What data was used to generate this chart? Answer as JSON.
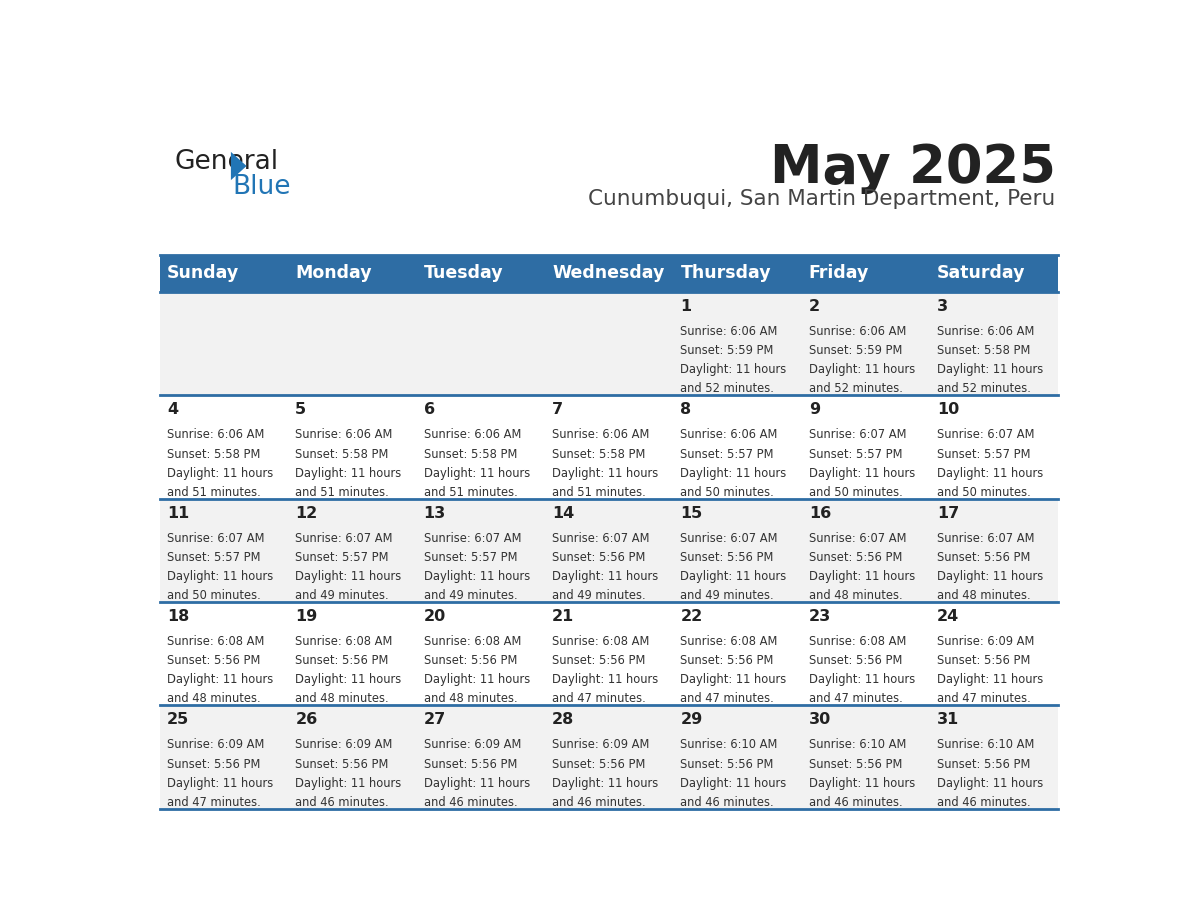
{
  "title": "May 2025",
  "subtitle": "Cunumbuqui, San Martin Department, Peru",
  "days_of_week": [
    "Sunday",
    "Monday",
    "Tuesday",
    "Wednesday",
    "Thursday",
    "Friday",
    "Saturday"
  ],
  "header_bg": "#2E6DA4",
  "header_text": "#FFFFFF",
  "row_bg_odd": "#F2F2F2",
  "row_bg_even": "#FFFFFF",
  "cell_text_color": "#333333",
  "day_num_color": "#222222",
  "border_color": "#2E6DA4",
  "title_color": "#222222",
  "subtitle_color": "#444444",
  "logo_general_color": "#222222",
  "logo_blue_color": "#2175B5",
  "calendar_data": [
    [
      {
        "day": "",
        "sunrise": "",
        "sunset": "",
        "daylight_h": "",
        "daylight_m": ""
      },
      {
        "day": "",
        "sunrise": "",
        "sunset": "",
        "daylight_h": "",
        "daylight_m": ""
      },
      {
        "day": "",
        "sunrise": "",
        "sunset": "",
        "daylight_h": "",
        "daylight_m": ""
      },
      {
        "day": "",
        "sunrise": "",
        "sunset": "",
        "daylight_h": "",
        "daylight_m": ""
      },
      {
        "day": "1",
        "sunrise": "6:06 AM",
        "sunset": "5:59 PM",
        "daylight_h": "11",
        "daylight_m": "52"
      },
      {
        "day": "2",
        "sunrise": "6:06 AM",
        "sunset": "5:59 PM",
        "daylight_h": "11",
        "daylight_m": "52"
      },
      {
        "day": "3",
        "sunrise": "6:06 AM",
        "sunset": "5:58 PM",
        "daylight_h": "11",
        "daylight_m": "52"
      }
    ],
    [
      {
        "day": "4",
        "sunrise": "6:06 AM",
        "sunset": "5:58 PM",
        "daylight_h": "11",
        "daylight_m": "51"
      },
      {
        "day": "5",
        "sunrise": "6:06 AM",
        "sunset": "5:58 PM",
        "daylight_h": "11",
        "daylight_m": "51"
      },
      {
        "day": "6",
        "sunrise": "6:06 AM",
        "sunset": "5:58 PM",
        "daylight_h": "11",
        "daylight_m": "51"
      },
      {
        "day": "7",
        "sunrise": "6:06 AM",
        "sunset": "5:58 PM",
        "daylight_h": "11",
        "daylight_m": "51"
      },
      {
        "day": "8",
        "sunrise": "6:06 AM",
        "sunset": "5:57 PM",
        "daylight_h": "11",
        "daylight_m": "50"
      },
      {
        "day": "9",
        "sunrise": "6:07 AM",
        "sunset": "5:57 PM",
        "daylight_h": "11",
        "daylight_m": "50"
      },
      {
        "day": "10",
        "sunrise": "6:07 AM",
        "sunset": "5:57 PM",
        "daylight_h": "11",
        "daylight_m": "50"
      }
    ],
    [
      {
        "day": "11",
        "sunrise": "6:07 AM",
        "sunset": "5:57 PM",
        "daylight_h": "11",
        "daylight_m": "50"
      },
      {
        "day": "12",
        "sunrise": "6:07 AM",
        "sunset": "5:57 PM",
        "daylight_h": "11",
        "daylight_m": "49"
      },
      {
        "day": "13",
        "sunrise": "6:07 AM",
        "sunset": "5:57 PM",
        "daylight_h": "11",
        "daylight_m": "49"
      },
      {
        "day": "14",
        "sunrise": "6:07 AM",
        "sunset": "5:56 PM",
        "daylight_h": "11",
        "daylight_m": "49"
      },
      {
        "day": "15",
        "sunrise": "6:07 AM",
        "sunset": "5:56 PM",
        "daylight_h": "11",
        "daylight_m": "49"
      },
      {
        "day": "16",
        "sunrise": "6:07 AM",
        "sunset": "5:56 PM",
        "daylight_h": "11",
        "daylight_m": "48"
      },
      {
        "day": "17",
        "sunrise": "6:07 AM",
        "sunset": "5:56 PM",
        "daylight_h": "11",
        "daylight_m": "48"
      }
    ],
    [
      {
        "day": "18",
        "sunrise": "6:08 AM",
        "sunset": "5:56 PM",
        "daylight_h": "11",
        "daylight_m": "48"
      },
      {
        "day": "19",
        "sunrise": "6:08 AM",
        "sunset": "5:56 PM",
        "daylight_h": "11",
        "daylight_m": "48"
      },
      {
        "day": "20",
        "sunrise": "6:08 AM",
        "sunset": "5:56 PM",
        "daylight_h": "11",
        "daylight_m": "48"
      },
      {
        "day": "21",
        "sunrise": "6:08 AM",
        "sunset": "5:56 PM",
        "daylight_h": "11",
        "daylight_m": "47"
      },
      {
        "day": "22",
        "sunrise": "6:08 AM",
        "sunset": "5:56 PM",
        "daylight_h": "11",
        "daylight_m": "47"
      },
      {
        "day": "23",
        "sunrise": "6:08 AM",
        "sunset": "5:56 PM",
        "daylight_h": "11",
        "daylight_m": "47"
      },
      {
        "day": "24",
        "sunrise": "6:09 AM",
        "sunset": "5:56 PM",
        "daylight_h": "11",
        "daylight_m": "47"
      }
    ],
    [
      {
        "day": "25",
        "sunrise": "6:09 AM",
        "sunset": "5:56 PM",
        "daylight_h": "11",
        "daylight_m": "47"
      },
      {
        "day": "26",
        "sunrise": "6:09 AM",
        "sunset": "5:56 PM",
        "daylight_h": "11",
        "daylight_m": "46"
      },
      {
        "day": "27",
        "sunrise": "6:09 AM",
        "sunset": "5:56 PM",
        "daylight_h": "11",
        "daylight_m": "46"
      },
      {
        "day": "28",
        "sunrise": "6:09 AM",
        "sunset": "5:56 PM",
        "daylight_h": "11",
        "daylight_m": "46"
      },
      {
        "day": "29",
        "sunrise": "6:10 AM",
        "sunset": "5:56 PM",
        "daylight_h": "11",
        "daylight_m": "46"
      },
      {
        "day": "30",
        "sunrise": "6:10 AM",
        "sunset": "5:56 PM",
        "daylight_h": "11",
        "daylight_m": "46"
      },
      {
        "day": "31",
        "sunrise": "6:10 AM",
        "sunset": "5:56 PM",
        "daylight_h": "11",
        "daylight_m": "46"
      }
    ]
  ]
}
